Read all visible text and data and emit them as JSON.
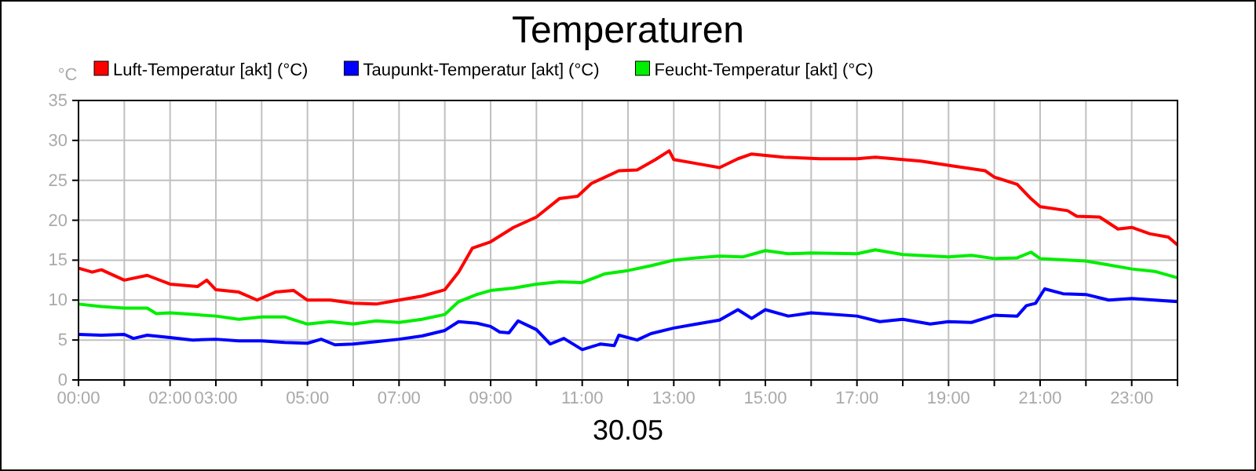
{
  "chart_data": {
    "type": "line",
    "title": "Temperaturen",
    "xlabel": "30.05",
    "ylabel": "°C",
    "xlim": [
      0,
      24
    ],
    "xticks": [
      {
        "value": 0,
        "label": "00:00"
      },
      {
        "value": 1,
        "label": null
      },
      {
        "value": 2,
        "label": "02:00"
      },
      {
        "value": 3,
        "label": "03:00"
      },
      {
        "value": 4,
        "label": null
      },
      {
        "value": 5,
        "label": "05:00"
      },
      {
        "value": 6,
        "label": null
      },
      {
        "value": 7,
        "label": "07:00"
      },
      {
        "value": 8,
        "label": null
      },
      {
        "value": 9,
        "label": "09:00"
      },
      {
        "value": 10,
        "label": null
      },
      {
        "value": 11,
        "label": "11:00"
      },
      {
        "value": 12,
        "label": null
      },
      {
        "value": 13,
        "label": "13:00"
      },
      {
        "value": 14,
        "label": null
      },
      {
        "value": 15,
        "label": "15:00"
      },
      {
        "value": 16,
        "label": null
      },
      {
        "value": 17,
        "label": "17:00"
      },
      {
        "value": 18,
        "label": null
      },
      {
        "value": 19,
        "label": "19:00"
      },
      {
        "value": 20,
        "label": null
      },
      {
        "value": 21,
        "label": "21:00"
      },
      {
        "value": 22,
        "label": null
      },
      {
        "value": 23,
        "label": "23:00"
      },
      {
        "value": 24,
        "label": null
      }
    ],
    "ylim": [
      0,
      35
    ],
    "yticks": [
      0,
      5,
      10,
      15,
      20,
      25,
      30,
      35
    ],
    "grid": true,
    "legend": "top left",
    "marker": "none",
    "line_style": "solid",
    "series": [
      {
        "name": "Luft-Temperatur [akt] (°C)",
        "color": "#ff0000",
        "x": [
          0,
          0.3,
          0.5,
          1,
          1.5,
          2,
          2.6,
          2.8,
          3,
          3.5,
          3.9,
          4.3,
          4.7,
          5,
          5.5,
          6,
          6.5,
          7,
          7.5,
          8,
          8.3,
          8.6,
          9,
          9.5,
          10,
          10.5,
          10.9,
          11.2,
          11.8,
          12.2,
          12.6,
          12.9,
          13,
          13.5,
          14,
          14.4,
          14.7,
          15.4,
          16.2,
          17,
          17.4,
          18.4,
          19.1,
          19.8,
          20,
          20.5,
          20.8,
          21,
          21.6,
          21.8,
          22.3,
          22.7,
          23,
          23.4,
          23.8,
          24
        ],
        "values": [
          14,
          13.5,
          13.8,
          12.5,
          13.1,
          12,
          11.7,
          12.5,
          11.3,
          11,
          10,
          11,
          11.2,
          10,
          10,
          9.6,
          9.5,
          10,
          10.5,
          11.3,
          13.5,
          16.5,
          17.3,
          19.1,
          20.4,
          22.7,
          23,
          24.6,
          26.2,
          26.3,
          27.6,
          28.7,
          27.6,
          27.1,
          26.6,
          27.7,
          28.3,
          27.9,
          27.7,
          27.7,
          27.9,
          27.4,
          26.8,
          26.2,
          25.4,
          24.5,
          22.7,
          21.7,
          21.2,
          20.5,
          20.4,
          18.9,
          19.1,
          18.3,
          17.9,
          16.9
        ]
      },
      {
        "name": "Taupunkt-Temperatur [akt] (°C)",
        "color": "#0000ff",
        "x": [
          0,
          0.5,
          1,
          1.2,
          1.5,
          2,
          2.5,
          3,
          3.5,
          4,
          4.5,
          5,
          5.3,
          5.6,
          6,
          6.5,
          7,
          7.5,
          8,
          8.3,
          8.7,
          9,
          9.2,
          9.4,
          9.6,
          10,
          10.3,
          10.6,
          11,
          11.4,
          11.7,
          11.8,
          12.2,
          12.5,
          13,
          13.5,
          14,
          14.4,
          14.7,
          15,
          15.5,
          16,
          17,
          17.5,
          18,
          18.6,
          19,
          19.5,
          20,
          20.5,
          20.7,
          20.9,
          21.1,
          21.5,
          22,
          22.5,
          23,
          24
        ],
        "values": [
          5.7,
          5.6,
          5.7,
          5.2,
          5.6,
          5.3,
          5,
          5.1,
          4.9,
          4.9,
          4.7,
          4.6,
          5.1,
          4.4,
          4.5,
          4.8,
          5.1,
          5.5,
          6.2,
          7.3,
          7.1,
          6.7,
          6,
          5.9,
          7.4,
          6.3,
          4.5,
          5.2,
          3.8,
          4.5,
          4.3,
          5.6,
          5,
          5.8,
          6.5,
          7,
          7.5,
          8.8,
          7.7,
          8.8,
          8,
          8.4,
          8,
          7.3,
          7.6,
          7,
          7.3,
          7.2,
          8.1,
          8,
          9.3,
          9.6,
          11.4,
          10.8,
          10.7,
          10,
          10.2,
          9.8
        ]
      },
      {
        "name": "Feucht-Temperatur [akt] (°C)",
        "color": "#00ee00",
        "x": [
          0,
          0.5,
          1,
          1.5,
          1.7,
          2,
          2.5,
          3,
          3.5,
          4,
          4.5,
          5,
          5.5,
          6,
          6.5,
          7,
          7.5,
          8,
          8.3,
          8.7,
          9,
          9.5,
          10,
          10.5,
          11,
          11.5,
          12,
          12.5,
          13,
          13.5,
          14,
          14.5,
          15,
          15.5,
          16,
          17,
          17.4,
          18,
          19,
          19.5,
          20,
          20.5,
          20.8,
          21,
          22,
          22.5,
          23,
          23.5,
          24
        ],
        "values": [
          9.5,
          9.2,
          9,
          9,
          8.3,
          8.4,
          8.2,
          8,
          7.6,
          7.9,
          7.9,
          7,
          7.3,
          7,
          7.4,
          7.2,
          7.6,
          8.2,
          9.8,
          10.7,
          11.2,
          11.5,
          12,
          12.3,
          12.2,
          13.3,
          13.7,
          14.3,
          15,
          15.3,
          15.5,
          15.4,
          16.2,
          15.8,
          15.9,
          15.8,
          16.3,
          15.7,
          15.4,
          15.6,
          15.2,
          15.3,
          16,
          15.2,
          14.9,
          14.4,
          13.9,
          13.6,
          12.8
        ]
      }
    ]
  }
}
